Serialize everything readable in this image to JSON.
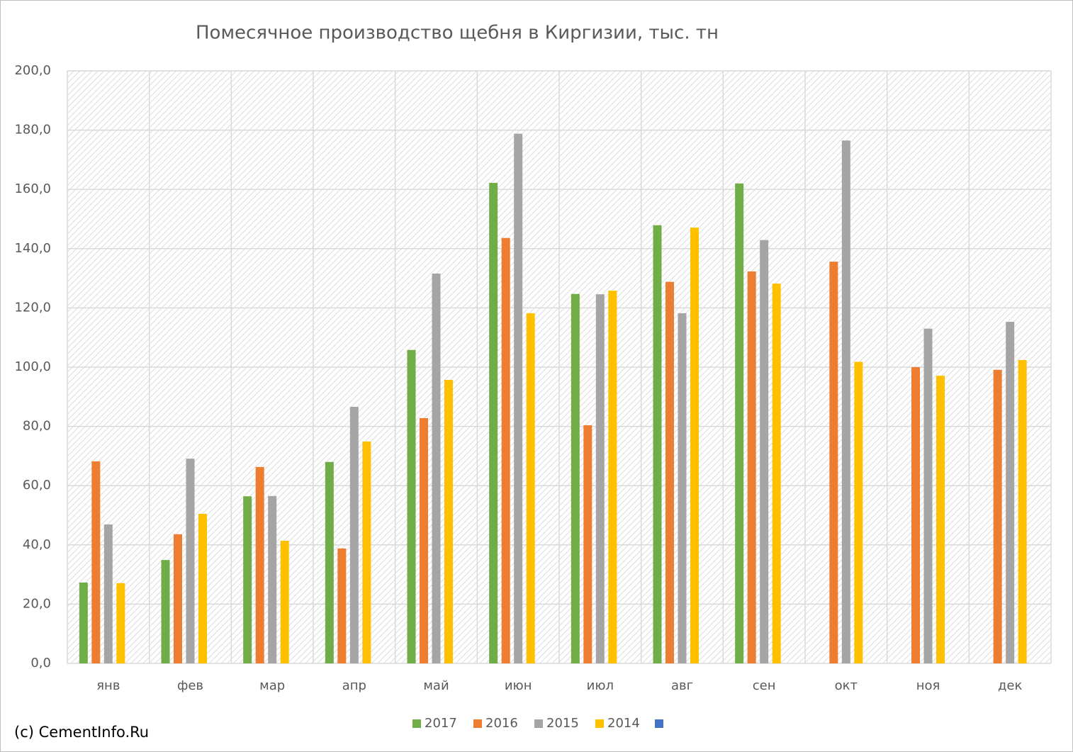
{
  "chart_data": {
    "type": "bar",
    "title": "Помесячное производство щебня в Киргизии, тыс. тн",
    "source": "(c) CementInfo.Ru",
    "categories": [
      "янв",
      "фев",
      "мар",
      "апр",
      "май",
      "июн",
      "июл",
      "авг",
      "сен",
      "окт",
      "ноя",
      "дек"
    ],
    "series": [
      {
        "name": "2017",
        "color": "#70ad47",
        "values": [
          27.3,
          34.9,
          56.4,
          68.0,
          105.8,
          162.2,
          124.7,
          147.9,
          162.0,
          null,
          null,
          null
        ]
      },
      {
        "name": "2016",
        "color": "#ed7d31",
        "values": [
          68.2,
          43.6,
          66.3,
          38.8,
          82.8,
          143.6,
          80.4,
          128.8,
          132.3,
          135.6,
          100.0,
          99.1
        ]
      },
      {
        "name": "2015",
        "color": "#a5a5a5",
        "values": [
          46.9,
          69.1,
          56.5,
          86.6,
          131.6,
          178.8,
          124.6,
          118.2,
          142.9,
          176.5,
          113.0,
          115.3
        ]
      },
      {
        "name": "2014",
        "color": "#ffc000",
        "values": [
          27.1,
          50.5,
          41.4,
          74.9,
          95.7,
          118.2,
          125.8,
          147.1,
          128.2,
          101.8,
          97.1,
          102.4
        ]
      }
    ],
    "ylim": [
      0,
      200
    ],
    "yticks": [
      {
        "value": 0,
        "label": "0,0"
      },
      {
        "value": 20,
        "label": "20,0"
      },
      {
        "value": 40,
        "label": "40,0"
      },
      {
        "value": 60,
        "label": "60,0"
      },
      {
        "value": 80,
        "label": "80,0"
      },
      {
        "value": 100,
        "label": "100,0"
      },
      {
        "value": 120,
        "label": "120,0"
      },
      {
        "value": 140,
        "label": "140,0"
      },
      {
        "value": 160,
        "label": "160,0"
      },
      {
        "value": 180,
        "label": "180,0"
      },
      {
        "value": 200,
        "label": "200,0"
      }
    ],
    "grid": true
  }
}
